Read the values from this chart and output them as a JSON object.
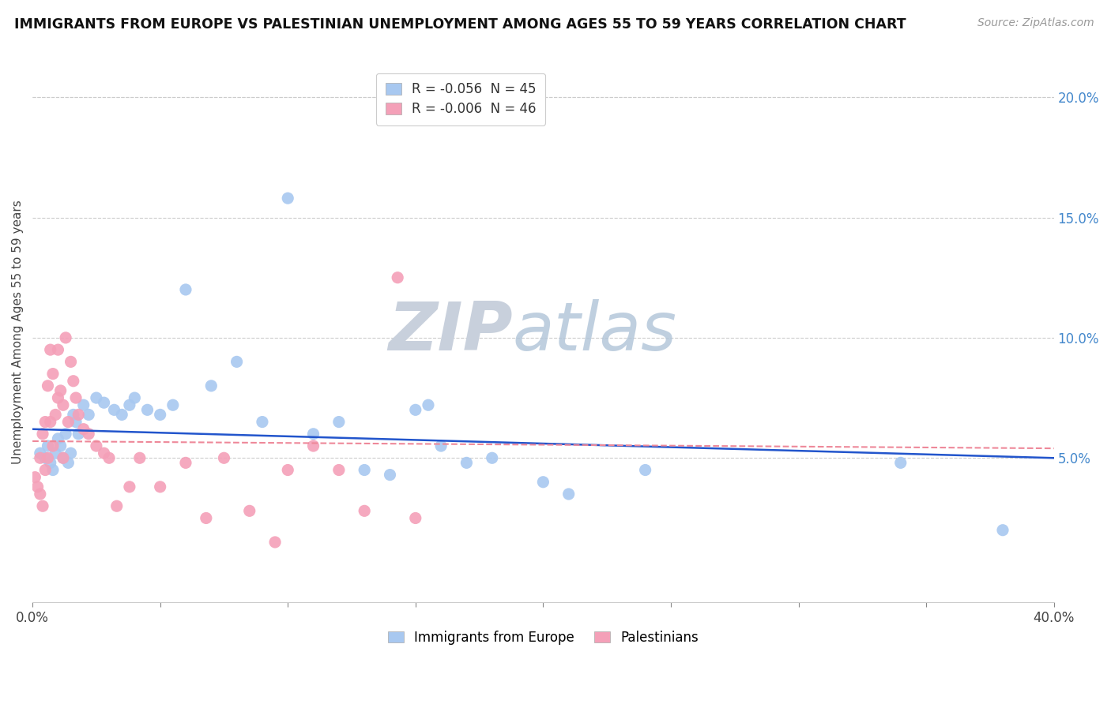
{
  "title": "IMMIGRANTS FROM EUROPE VS PALESTINIAN UNEMPLOYMENT AMONG AGES 55 TO 59 YEARS CORRELATION CHART",
  "source_text": "Source: ZipAtlas.com",
  "ylabel": "Unemployment Among Ages 55 to 59 years",
  "xlim": [
    0.0,
    0.4
  ],
  "ylim": [
    -0.01,
    0.215
  ],
  "x_ticks": [
    0.0,
    0.05,
    0.1,
    0.15,
    0.2,
    0.25,
    0.3,
    0.35,
    0.4
  ],
  "y_ticks_right": [
    0.05,
    0.1,
    0.15,
    0.2
  ],
  "legend_europe_R": "-0.056",
  "legend_europe_N": "45",
  "legend_palestinians_R": "-0.006",
  "legend_palestinians_N": "46",
  "europe_color": "#a8c8f0",
  "palestinians_color": "#f4a0b8",
  "europe_line_color": "#2255cc",
  "palestinians_line_color": "#ee8899",
  "watermark_zip_color": "#d0d8e8",
  "watermark_atlas_color": "#b8cce0",
  "background_color": "#ffffff",
  "grid_color": "#cccccc",
  "europe_scatter_x": [
    0.003,
    0.005,
    0.006,
    0.007,
    0.008,
    0.009,
    0.01,
    0.011,
    0.012,
    0.013,
    0.014,
    0.015,
    0.016,
    0.017,
    0.018,
    0.02,
    0.022,
    0.025,
    0.028,
    0.032,
    0.035,
    0.038,
    0.04,
    0.045,
    0.05,
    0.055,
    0.06,
    0.07,
    0.08,
    0.09,
    0.1,
    0.11,
    0.12,
    0.13,
    0.14,
    0.15,
    0.155,
    0.16,
    0.17,
    0.18,
    0.2,
    0.21,
    0.24,
    0.34,
    0.38
  ],
  "europe_scatter_y": [
    0.052,
    0.05,
    0.055,
    0.048,
    0.045,
    0.052,
    0.058,
    0.055,
    0.05,
    0.06,
    0.048,
    0.052,
    0.068,
    0.065,
    0.06,
    0.072,
    0.068,
    0.075,
    0.073,
    0.07,
    0.068,
    0.072,
    0.075,
    0.07,
    0.068,
    0.072,
    0.12,
    0.08,
    0.09,
    0.065,
    0.158,
    0.06,
    0.065,
    0.045,
    0.043,
    0.07,
    0.072,
    0.055,
    0.048,
    0.05,
    0.04,
    0.035,
    0.045,
    0.048,
    0.02
  ],
  "palestinians_scatter_x": [
    0.001,
    0.002,
    0.003,
    0.003,
    0.004,
    0.004,
    0.005,
    0.005,
    0.006,
    0.006,
    0.007,
    0.007,
    0.008,
    0.008,
    0.009,
    0.01,
    0.01,
    0.011,
    0.012,
    0.012,
    0.013,
    0.014,
    0.015,
    0.016,
    0.017,
    0.018,
    0.02,
    0.022,
    0.025,
    0.028,
    0.03,
    0.033,
    0.038,
    0.042,
    0.05,
    0.06,
    0.068,
    0.075,
    0.085,
    0.095,
    0.1,
    0.11,
    0.12,
    0.13,
    0.143,
    0.15
  ],
  "palestinians_scatter_y": [
    0.042,
    0.038,
    0.05,
    0.035,
    0.06,
    0.03,
    0.065,
    0.045,
    0.08,
    0.05,
    0.095,
    0.065,
    0.085,
    0.055,
    0.068,
    0.095,
    0.075,
    0.078,
    0.072,
    0.05,
    0.1,
    0.065,
    0.09,
    0.082,
    0.075,
    0.068,
    0.062,
    0.06,
    0.055,
    0.052,
    0.05,
    0.03,
    0.038,
    0.05,
    0.038,
    0.048,
    0.025,
    0.05,
    0.028,
    0.015,
    0.045,
    0.055,
    0.045,
    0.028,
    0.125,
    0.025
  ]
}
